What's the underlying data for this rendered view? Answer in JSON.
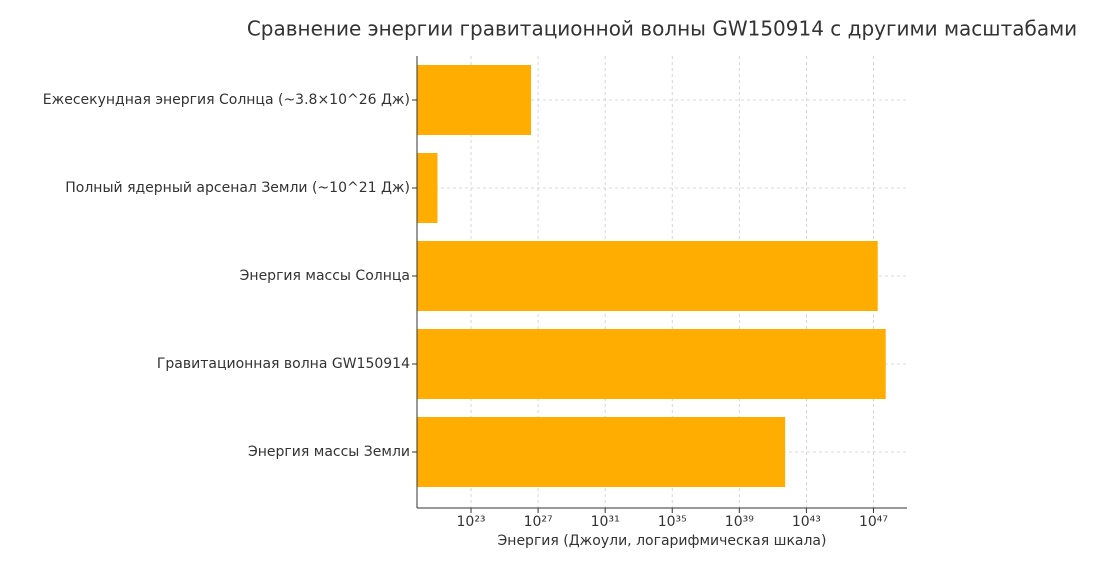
{
  "chart_data": {
    "type": "barh",
    "title": "Сравнение энергии гравитационной волны GW150914 с другими масштабами",
    "xlabel": "Энергия (Джоули, логарифмическая шкала)",
    "categories": [
      "Ежесекундная энергия Солнца (~3.8×10^26 Дж)",
      "Полный ядерный арсенал Земли (~10^21 Дж)",
      "Энергия массы Солнца",
      "Гравитационная волна GW150914",
      "Энергия массы Земли"
    ],
    "values": [
      3.8e+26,
      1e+21,
      1.8e+47,
      5.4e+47,
      5.4e+41
    ],
    "color": "#ffad00",
    "xscale": "log",
    "xlim": [
      6e+19,
      1e+49
    ],
    "xticks": [
      {
        "value": 1e+23,
        "label": "10²³"
      },
      {
        "value": 1e+27,
        "label": "10²⁷"
      },
      {
        "value": 1e+31,
        "label": "10³¹"
      },
      {
        "value": 1e+35,
        "label": "10³⁵"
      },
      {
        "value": 1e+39,
        "label": "10³⁹"
      },
      {
        "value": 1e+43,
        "label": "10⁴³"
      },
      {
        "value": 1e+47,
        "label": "10⁴⁷"
      }
    ],
    "grid": true
  }
}
